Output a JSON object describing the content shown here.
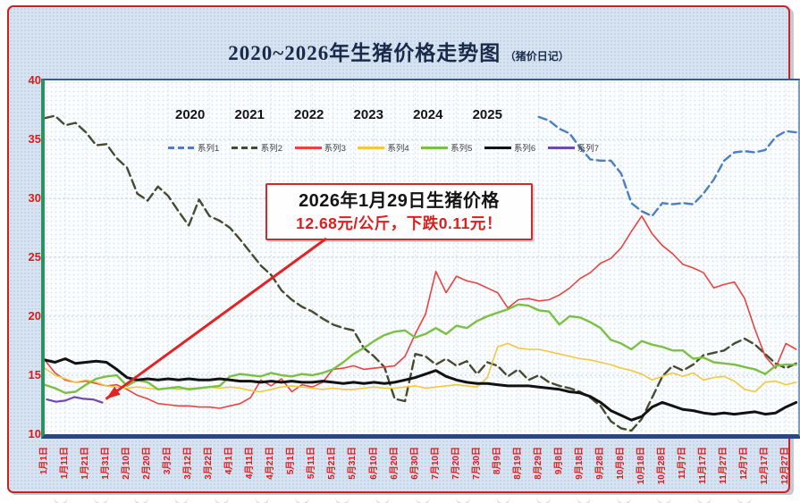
{
  "title": {
    "main": "2020~2026年生猪价格走势图",
    "sub": "（猪价日记）"
  },
  "annotation": {
    "line1": "2026年1月29日生猪价格",
    "line2": "12.68元/公斤，下跌0.11元！"
  },
  "legend": {
    "years": [
      "2020",
      "2021",
      "2022",
      "2023",
      "2024",
      "2025"
    ],
    "series_labels": [
      "系列1",
      "系列2",
      "系列3",
      "系列4",
      "系列5",
      "系列6",
      "系列7"
    ]
  },
  "colors": {
    "axis_label_red": "#e11818",
    "card_border_red": "#cf2020",
    "callout_border_red": "#d02a2a",
    "callout_value_red": "#e01d1d",
    "title_navy": "#1b2a4a"
  },
  "chart_data": {
    "type": "line",
    "title": "2020~2026年生猪价格走势图（猪价日记）",
    "xlabel": "",
    "ylabel": "",
    "ylim": [
      10,
      40
    ],
    "y_ticks": [
      10,
      15,
      20,
      25,
      30,
      35,
      40
    ],
    "days_per_year": 366,
    "x_tick_day_interval": 10,
    "grid": true,
    "legend_position": "top-inside",
    "x_tick_labels": [
      "1月1日",
      "1月11日",
      "1月21日",
      "1月31日",
      "2月10日",
      "2月20日",
      "3月2日",
      "3月12日",
      "3月22日",
      "4月1日",
      "4月11日",
      "4月21日",
      "5月1日",
      "5月11日",
      "5月21日",
      "5月31日",
      "6月10日",
      "6月20日",
      "6月30日",
      "7月10日",
      "7月20日",
      "7月30日",
      "8月9日",
      "8月19日",
      "8月29日",
      "9月8日",
      "9月18日",
      "9月28日",
      "10月8日",
      "10月18日",
      "10月28日",
      "11月7日",
      "11月17日",
      "11月27日",
      "12月7日",
      "12月17日",
      "12月27日"
    ],
    "series": [
      {
        "name": "系列1",
        "year": "2020",
        "color": "#4a7fc1",
        "dash": "9 5",
        "width": 2.4,
        "start_day": 240,
        "step_days": 5,
        "values": [
          36.9,
          36.6,
          35.9,
          35.5,
          34.3,
          33.3,
          33.2,
          33.2,
          32.1,
          29.6,
          28.9,
          28.5,
          29.6,
          29.5,
          29.6,
          29.5,
          30.4,
          31.6,
          33.2,
          33.9,
          34.0,
          33.9,
          34.1,
          35.2,
          35.7,
          35.6
        ]
      },
      {
        "name": "系列2",
        "year": "2021",
        "color": "#474b2e",
        "dash": "10 5",
        "width": 2.4,
        "start_day": 0,
        "step_days": 5,
        "values": [
          36.8,
          37.0,
          36.2,
          36.4,
          35.6,
          34.5,
          34.6,
          33.4,
          32.6,
          30.4,
          29.8,
          31.0,
          30.2,
          28.9,
          27.7,
          29.9,
          28.5,
          28.1,
          27.5,
          26.5,
          25.4,
          24.3,
          23.5,
          22.2,
          21.4,
          20.8,
          20.4,
          19.8,
          19.3,
          19.0,
          18.8,
          17.3,
          16.6,
          15.7,
          13.0,
          12.8,
          16.8,
          16.6,
          15.9,
          16.4,
          15.8,
          16.2,
          15.1,
          16.1,
          15.8,
          14.9,
          15.5,
          14.6,
          15.0,
          14.4,
          14.1,
          13.9,
          13.6,
          13.1,
          12.4,
          11.1,
          10.5,
          10.3,
          11.3,
          13.1,
          14.9,
          15.8,
          15.4,
          15.9,
          16.7,
          16.9,
          17.1,
          17.7,
          18.1,
          17.6,
          16.8,
          16.0,
          15.6,
          16.0
        ]
      },
      {
        "name": "系列3",
        "year": "2022",
        "color": "#e8433f",
        "dash": null,
        "width": 1.6,
        "start_day": 0,
        "step_days": 5,
        "values": [
          16.3,
          15.2,
          14.6,
          14.4,
          14.5,
          14.3,
          14.1,
          14.2,
          13.8,
          13.3,
          13.0,
          12.6,
          12.5,
          12.4,
          12.4,
          12.3,
          12.3,
          12.2,
          12.4,
          12.6,
          13.1,
          14.6,
          14.1,
          14.7,
          13.6,
          14.2,
          14.0,
          14.4,
          15.5,
          15.6,
          15.8,
          15.5,
          15.6,
          15.7,
          15.8,
          16.6,
          18.5,
          20.2,
          23.8,
          22.0,
          23.4,
          23.0,
          22.8,
          22.4,
          22.0,
          20.7,
          21.4,
          21.5,
          21.3,
          21.4,
          21.8,
          22.4,
          23.2,
          23.7,
          24.5,
          24.9,
          25.8,
          27.2,
          28.5,
          27.0,
          26.0,
          25.3,
          24.4,
          24.1,
          23.7,
          22.4,
          22.7,
          22.9,
          21.5,
          18.9,
          16.6,
          15.6,
          17.7,
          17.2
        ]
      },
      {
        "name": "系列4",
        "year": "2023",
        "color": "#f2c83e",
        "dash": null,
        "width": 1.6,
        "start_day": 0,
        "step_days": 5,
        "values": [
          15.6,
          15.0,
          14.7,
          14.4,
          14.6,
          14.4,
          14.1,
          14.0,
          13.9,
          14.0,
          13.9,
          13.8,
          13.9,
          13.8,
          13.9,
          13.9,
          14.0,
          13.9,
          14.0,
          13.9,
          13.7,
          13.6,
          13.8,
          14.0,
          14.1,
          14.0,
          13.9,
          13.8,
          13.9,
          13.8,
          13.8,
          13.9,
          14.0,
          13.9,
          13.9,
          14.0,
          14.1,
          13.9,
          14.0,
          14.1,
          14.2,
          14.1,
          14.0,
          14.8,
          17.4,
          17.7,
          17.3,
          17.2,
          17.2,
          17.0,
          16.8,
          16.6,
          16.4,
          16.3,
          16.1,
          15.9,
          15.6,
          15.4,
          15.1,
          14.6,
          14.9,
          15.2,
          14.9,
          15.2,
          14.6,
          14.8,
          14.9,
          14.5,
          13.8,
          13.6,
          14.4,
          14.5,
          14.2,
          14.4
        ]
      },
      {
        "name": "系列5",
        "year": "2024",
        "color": "#7ac143",
        "dash": null,
        "width": 2.4,
        "start_day": 0,
        "step_days": 5,
        "values": [
          14.2,
          13.9,
          13.5,
          13.6,
          14.2,
          14.7,
          14.9,
          15.0,
          14.1,
          14.6,
          14.4,
          13.8,
          13.9,
          14.0,
          13.8,
          13.9,
          14.0,
          14.1,
          14.9,
          15.1,
          15.0,
          14.9,
          15.2,
          15.0,
          14.9,
          15.1,
          15.0,
          15.2,
          15.5,
          16.1,
          16.8,
          17.3,
          17.9,
          18.4,
          18.7,
          18.8,
          18.2,
          18.5,
          19.0,
          18.5,
          19.2,
          19.0,
          19.6,
          20.0,
          20.3,
          20.6,
          21.0,
          20.9,
          20.5,
          20.4,
          19.3,
          20.0,
          19.9,
          19.5,
          19.0,
          18.0,
          17.7,
          17.2,
          17.9,
          17.6,
          17.4,
          17.1,
          17.1,
          16.4,
          16.5,
          16.1,
          16.0,
          15.9,
          15.7,
          15.5,
          15.1,
          15.8,
          15.9,
          15.9
        ]
      },
      {
        "name": "系列6",
        "year": "2025",
        "color": "#121212",
        "dash": null,
        "width": 3,
        "start_day": 0,
        "step_days": 5,
        "values": [
          16.3,
          16.1,
          16.4,
          16.0,
          16.1,
          16.2,
          16.1,
          15.5,
          14.8,
          14.6,
          14.7,
          14.6,
          14.7,
          14.6,
          14.7,
          14.6,
          14.6,
          14.7,
          14.6,
          14.5,
          14.5,
          14.4,
          14.5,
          14.4,
          14.5,
          14.4,
          14.4,
          14.5,
          14.4,
          14.3,
          14.4,
          14.3,
          14.4,
          14.3,
          14.4,
          14.6,
          14.8,
          15.1,
          15.4,
          14.9,
          14.6,
          14.4,
          14.3,
          14.3,
          14.2,
          14.1,
          14.1,
          14.1,
          14.0,
          13.9,
          13.8,
          13.6,
          13.5,
          13.2,
          12.7,
          12.0,
          11.6,
          11.2,
          11.5,
          12.3,
          12.7,
          12.4,
          12.1,
          12.0,
          11.8,
          11.7,
          11.8,
          11.7,
          11.8,
          11.9,
          11.7,
          11.8,
          12.3,
          12.7
        ]
      },
      {
        "name": "系列7",
        "year": "2026",
        "color": "#6f49b1",
        "dash": null,
        "width": 2.2,
        "start_day": 1,
        "step_days": 4.5,
        "values": [
          12.95,
          12.75,
          12.85,
          13.15,
          13.0,
          12.95,
          12.68
        ]
      }
    ],
    "annotation_target": {
      "series": "系列7",
      "day": 28,
      "value": 12.68
    }
  }
}
